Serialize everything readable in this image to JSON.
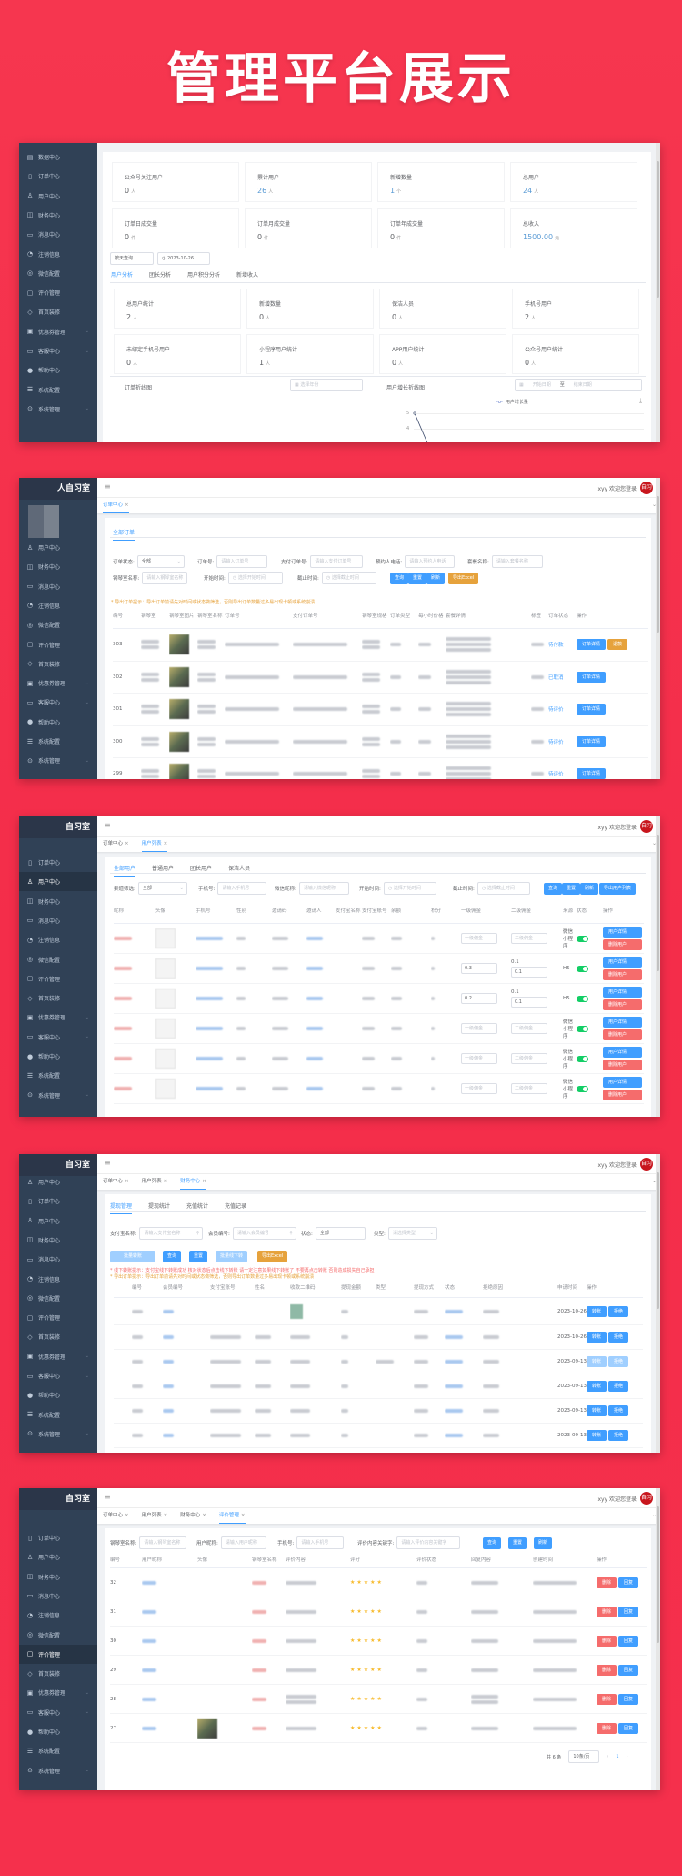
{
  "hero": {
    "title": "管理平台展示"
  },
  "common": {
    "welcome": "xyy 欢迎您登录",
    "logo": "人自习室",
    "logo_short": "自习室",
    "avatar_text": "自习",
    "close": "×",
    "hamburger": "≡",
    "dropdown": "⌄"
  },
  "colors": {
    "background": "#f42f4c",
    "sidebar": "#304156",
    "primary": "#409eff",
    "warning": "#e6a23c",
    "danger": "#f56c6c",
    "success": "#13ce66"
  },
  "p1": {
    "sidebar": [
      {
        "label": "数据中心",
        "icon": "data-icon"
      },
      {
        "label": "订单中心",
        "icon": "document-icon"
      },
      {
        "label": "用户中心",
        "icon": "user-icon"
      },
      {
        "label": "财务中心",
        "icon": "wallet-icon"
      },
      {
        "label": "消息中心",
        "icon": "message-icon"
      },
      {
        "label": "注销信息",
        "icon": "pie-icon"
      },
      {
        "label": "微信配置",
        "icon": "wechat-icon"
      },
      {
        "label": "评价管理",
        "icon": "comment-icon"
      },
      {
        "label": "首页装修",
        "icon": "box-icon"
      },
      {
        "label": "优惠券管理",
        "icon": "coupon-icon",
        "expandable": true
      },
      {
        "label": "客服中心",
        "icon": "monitor-icon",
        "expandable": true
      },
      {
        "label": "帮助中心",
        "icon": "help-icon"
      },
      {
        "label": "系统配置",
        "icon": "list-icon"
      },
      {
        "label": "系统管理",
        "icon": "settings-icon",
        "expandable": true
      }
    ],
    "stats": [
      {
        "label": "公众号关注用户",
        "value": "0",
        "unit": "人"
      },
      {
        "label": "累计用户",
        "value": "26",
        "unit": "人"
      },
      {
        "label": "新增数量",
        "value": "1",
        "unit": "个"
      },
      {
        "label": "总用户",
        "value": "24",
        "unit": "人"
      },
      {
        "label": "订单日成交量",
        "value": "0",
        "unit": "件"
      },
      {
        "label": "订单月成交量",
        "value": "0",
        "unit": "件"
      },
      {
        "label": "订单年成交量",
        "value": "0",
        "unit": "件"
      },
      {
        "label": "总收入",
        "value": "1500.00",
        "unit": "元"
      }
    ],
    "filter": {
      "mode": "按天查询",
      "date": "2023-10-26"
    },
    "tabs": [
      "用户分析",
      "团长分析",
      "用户积分分析",
      "新增收入"
    ],
    "user_stats": [
      {
        "label": "总用户统计",
        "value": "2",
        "unit": "人"
      },
      {
        "label": "新增数量",
        "value": "0",
        "unit": "人"
      },
      {
        "label": "保洁人员",
        "value": "0",
        "unit": "人"
      },
      {
        "label": "手机号用户",
        "value": "2",
        "unit": "人"
      },
      {
        "label": "未绑定手机号用户",
        "value": "0",
        "unit": "人"
      },
      {
        "label": "小程序用户统计",
        "value": "1",
        "unit": "人"
      },
      {
        "label": "APP用户统计",
        "value": "0",
        "unit": "人"
      },
      {
        "label": "公众号用户统计",
        "value": "0",
        "unit": "人"
      }
    ],
    "order_chart": {
      "title": "订单折线图",
      "year_placeholder": "选择年份"
    },
    "user_chart": {
      "title": "用户增长折线图",
      "start_placeholder": "开始日期",
      "separator": "至",
      "end_placeholder": "结束日期",
      "legend": "用户增长量",
      "yticks": [
        "5",
        "4"
      ]
    }
  },
  "p2": {
    "sidebar": [
      {
        "label": "用户中心",
        "icon": "user-icon"
      },
      {
        "label": "财务中心",
        "icon": "wallet-icon"
      },
      {
        "label": "消息中心",
        "icon": "message-icon"
      },
      {
        "label": "注销信息",
        "icon": "pie-icon"
      },
      {
        "label": "微信配置",
        "icon": "wechat-icon"
      },
      {
        "label": "评价管理",
        "icon": "comment-icon"
      },
      {
        "label": "首页装修",
        "icon": "box-icon"
      },
      {
        "label": "优惠券管理",
        "icon": "coupon-icon",
        "expandable": true
      },
      {
        "label": "客服中心",
        "icon": "monitor-icon",
        "expandable": true
      },
      {
        "label": "帮助中心",
        "icon": "help-icon"
      },
      {
        "label": "系统配置",
        "icon": "list-icon"
      },
      {
        "label": "系统管理",
        "icon": "settings-icon",
        "expandable": true
      }
    ],
    "tags": [
      "订单中心"
    ],
    "subtabs": [
      "全部订单"
    ],
    "filters": {
      "status_label": "订单状态:",
      "status_value": "全部",
      "order_no_label": "订单号:",
      "order_no_ph": "请输入订单号",
      "pay_no_label": "支付订单号:",
      "pay_no_ph": "请输入支付订单号",
      "phone_label": "预约人电话:",
      "phone_ph": "请输入预约人电话",
      "package_label": "套餐名称:",
      "package_ph": "请输入套餐名称",
      "room_label": "钢琴室名称:",
      "room_ph": "请输入钢琴室名称",
      "start_label": "开始时间:",
      "start_ph": "选择开始时间",
      "end_label": "截止时间:",
      "end_ph": "选择截止时间"
    },
    "buttons": {
      "search": "查询",
      "reset": "重置",
      "refresh": "刷新",
      "export": "导出Excel"
    },
    "notice": "* 导出订单提示：导出订单前请先对时间或状态做筛选，否则导出订单数量过多易出现卡顿或系统崩溃",
    "columns": [
      "编号",
      "钢琴室",
      "钢琴室图片",
      "钢琴室名称",
      "订单号",
      "支付订单号",
      "钢琴室规格",
      "订单类型",
      "每小时价格",
      "套餐详情",
      "标签",
      "订单状态",
      "操作"
    ],
    "rows": [
      {
        "id": "303",
        "status": "待付款",
        "actions": [
          "订单详情",
          "退款"
        ]
      },
      {
        "id": "302",
        "status": "已取消",
        "actions": [
          "订单详情"
        ]
      },
      {
        "id": "301",
        "status": "待评价",
        "actions": [
          "订单详情"
        ]
      },
      {
        "id": "300",
        "status": "待评价",
        "actions": [
          "订单详情"
        ]
      },
      {
        "id": "299",
        "status": "待评价",
        "actions": [
          "订单详情"
        ]
      }
    ]
  },
  "p3": {
    "sidebar": [
      {
        "label": "订单中心",
        "icon": "document-icon"
      },
      {
        "label": "用户中心",
        "icon": "user-icon",
        "active": true
      },
      {
        "label": "财务中心",
        "icon": "wallet-icon"
      },
      {
        "label": "消息中心",
        "icon": "message-icon"
      },
      {
        "label": "注销信息",
        "icon": "pie-icon"
      },
      {
        "label": "微信配置",
        "icon": "wechat-icon"
      },
      {
        "label": "评价管理",
        "icon": "comment-icon"
      },
      {
        "label": "首页装修",
        "icon": "box-icon"
      },
      {
        "label": "优惠券管理",
        "icon": "coupon-icon",
        "expandable": true
      },
      {
        "label": "客服中心",
        "icon": "monitor-icon",
        "expandable": true
      },
      {
        "label": "帮助中心",
        "icon": "help-icon"
      },
      {
        "label": "系统配置",
        "icon": "list-icon"
      },
      {
        "label": "系统管理",
        "icon": "settings-icon",
        "expandable": true
      }
    ],
    "tags": [
      "订单中心",
      "用户列表"
    ],
    "subtabs": [
      "全部用户",
      "普通用户",
      "团长用户",
      "保洁人员"
    ],
    "filters": {
      "channel_label": "渠道筛选:",
      "channel_value": "全部",
      "phone_label": "手机号:",
      "phone_ph": "请输入手机号",
      "nick_label": "微信昵称:",
      "nick_ph": "请输入微信昵称",
      "start_label": "开始时间:",
      "start_ph": "选择开始时间",
      "end_label": "截止时间:",
      "end_ph": "选择截止时间"
    },
    "buttons": {
      "search": "查询",
      "reset": "重置",
      "refresh": "刷新",
      "export": "导出用户列表"
    },
    "columns": [
      "昵称",
      "头像",
      "手机号",
      "性别",
      "邀请码",
      "邀请人",
      "支付宝名称",
      "支付宝账号",
      "余额",
      "积分",
      "一级佣金",
      "二级佣金",
      "来源",
      "状态",
      "操作"
    ],
    "rows": [
      {
        "c1": "",
        "c1_ph": "一级佣金",
        "c2": "",
        "c2_ph": "二级佣金",
        "source": "微信小程序",
        "enabled": true,
        "actions": [
          "用户详情",
          "删除用户"
        ]
      },
      {
        "c1": "0.3",
        "c2": "0.1",
        "c2_top": "0.1",
        "source": "H5",
        "enabled": true,
        "actions": [
          "用户详情",
          "删除用户"
        ]
      },
      {
        "c1": "0.2",
        "c2": "0.1",
        "c2_top": "0.1",
        "source": "H5",
        "enabled": true,
        "actions": [
          "用户详情",
          "删除用户"
        ]
      },
      {
        "c1": "",
        "c1_ph": "一级佣金",
        "c2": "",
        "c2_ph": "二级佣金",
        "source": "微信小程序",
        "enabled": true,
        "actions": [
          "用户详情",
          "删除用户"
        ]
      },
      {
        "c1": "",
        "c1_ph": "一级佣金",
        "c2": "",
        "c2_ph": "二级佣金",
        "source": "微信小程序",
        "enabled": true,
        "actions": [
          "用户详情",
          "删除用户"
        ]
      },
      {
        "c1": "",
        "c1_ph": "一级佣金",
        "c2": "",
        "c2_ph": "二级佣金",
        "source": "微信小程序",
        "enabled": true,
        "actions": [
          "用户详情",
          "删除用户"
        ]
      }
    ]
  },
  "p4": {
    "sidebar": [
      {
        "label": "用户中心",
        "icon": "user-icon"
      },
      {
        "label": "订单中心",
        "icon": "document-icon"
      },
      {
        "label": "用户中心",
        "icon": "user-icon"
      },
      {
        "label": "财务中心",
        "icon": "wallet-icon"
      },
      {
        "label": "消息中心",
        "icon": "message-icon"
      },
      {
        "label": "注销信息",
        "icon": "pie-icon"
      },
      {
        "label": "微信配置",
        "icon": "wechat-icon"
      },
      {
        "label": "评价管理",
        "icon": "comment-icon"
      },
      {
        "label": "首页装修",
        "icon": "box-icon"
      },
      {
        "label": "优惠券管理",
        "icon": "coupon-icon",
        "expandable": true
      },
      {
        "label": "客服中心",
        "icon": "monitor-icon",
        "expandable": true
      },
      {
        "label": "帮助中心",
        "icon": "help-icon"
      },
      {
        "label": "系统配置",
        "icon": "list-icon"
      },
      {
        "label": "系统管理",
        "icon": "settings-icon",
        "expandable": true
      }
    ],
    "tags": [
      "订单中心",
      "用户列表",
      "财务中心"
    ],
    "subtabs": [
      "提现管理",
      "提现统计",
      "充值统计",
      "充值记录"
    ],
    "filters": {
      "alipay_label": "支付宝名称:",
      "alipay_ph": "请输入支付宝名称",
      "member_label": "会员编号:",
      "member_ph": "请输入会员编号",
      "status_label": "状态:",
      "status_value": "全部",
      "type_label": "类型:",
      "type_ph": "请选择类型"
    },
    "buttons": {
      "batch": "批量转账",
      "search": "查询",
      "reset": "重置",
      "offline": "批量线下转账",
      "export": "导出Excel"
    },
    "notice_red": "* 线下转账提示：支付宝线下转账成功 核对状态后点击线下转账 请一定注意如果线下转账了 不要再点击转账 否则造成损失自己承担",
    "notice_orange": "* 导出订单提示：导出订单前请先对时间或状态做筛选，否则导出订单数量过多易出现卡顿或系统崩溃",
    "columns": [
      "编号",
      "会员编号",
      "支付宝账号",
      "姓名",
      "收款二维码",
      "提现金额",
      "类型",
      "提现方式",
      "状态",
      "拒绝原因",
      "申请时间",
      "操作"
    ],
    "rows": [
      {
        "date": "2023-10-26",
        "actions": [
          "转账",
          "拒绝"
        ],
        "enabled": true
      },
      {
        "date": "2023-10-26",
        "actions": [
          "转账",
          "拒绝"
        ],
        "enabled": true
      },
      {
        "date": "2023-09-13",
        "actions": [
          "转账",
          "拒绝"
        ],
        "enabled": false
      },
      {
        "date": "2023-09-13",
        "actions": [
          "转账",
          "拒绝"
        ],
        "enabled": true
      },
      {
        "date": "2023-09-13",
        "actions": [
          "转账",
          "拒绝"
        ],
        "enabled": true
      },
      {
        "date": "2023-09-13",
        "actions": [
          "转账",
          "拒绝"
        ],
        "enabled": true
      }
    ]
  },
  "p5": {
    "sidebar": [
      {
        "label": "订单中心",
        "icon": "document-icon"
      },
      {
        "label": "用户中心",
        "icon": "user-icon"
      },
      {
        "label": "财务中心",
        "icon": "wallet-icon"
      },
      {
        "label": "消息中心",
        "icon": "message-icon"
      },
      {
        "label": "注销信息",
        "icon": "pie-icon"
      },
      {
        "label": "微信配置",
        "icon": "wechat-icon"
      },
      {
        "label": "评价管理",
        "icon": "comment-icon",
        "active": true
      },
      {
        "label": "首页装修",
        "icon": "box-icon"
      },
      {
        "label": "优惠券管理",
        "icon": "coupon-icon",
        "expandable": true
      },
      {
        "label": "客服中心",
        "icon": "monitor-icon",
        "expandable": true
      },
      {
        "label": "帮助中心",
        "icon": "help-icon"
      },
      {
        "label": "系统配置",
        "icon": "list-icon"
      },
      {
        "label": "系统管理",
        "icon": "settings-icon",
        "expandable": true
      }
    ],
    "tags": [
      "订单中心",
      "用户列表",
      "财务中心",
      "评价管理"
    ],
    "filters": {
      "room_label": "钢琴室名称:",
      "room_ph": "请输入钢琴室名称",
      "nick_label": "用户昵称:",
      "nick_ph": "请输入用户昵称",
      "phone_label": "手机号:",
      "phone_ph": "请输入手机号",
      "kw_label": "评价内容关键字:",
      "kw_ph": "请输入评价内容关键字"
    },
    "buttons": {
      "search": "查询",
      "reset": "重置",
      "refresh": "刷新"
    },
    "columns": [
      "编号",
      "用户昵称",
      "头像",
      "钢琴室名称",
      "评价内容",
      "评分",
      "评价状态",
      "回复内容",
      "创建时间",
      "操作"
    ],
    "rows": [
      {
        "id": "32",
        "rating": 5,
        "actions": [
          "删除",
          "回复"
        ]
      },
      {
        "id": "31",
        "rating": 5,
        "actions": [
          "删除",
          "回复"
        ]
      },
      {
        "id": "30",
        "rating": 5,
        "actions": [
          "删除",
          "回复"
        ]
      },
      {
        "id": "29",
        "rating": 5,
        "actions": [
          "删除",
          "回复"
        ]
      },
      {
        "id": "28",
        "rating": 5,
        "actions": [
          "删除",
          "回复"
        ]
      },
      {
        "id": "27",
        "rating": 5,
        "actions": [
          "删除",
          "回复"
        ]
      }
    ],
    "pagination": {
      "total": "共 6 条",
      "page_size": "10条/页",
      "prev": "‹",
      "page": "1",
      "next": "›"
    }
  }
}
